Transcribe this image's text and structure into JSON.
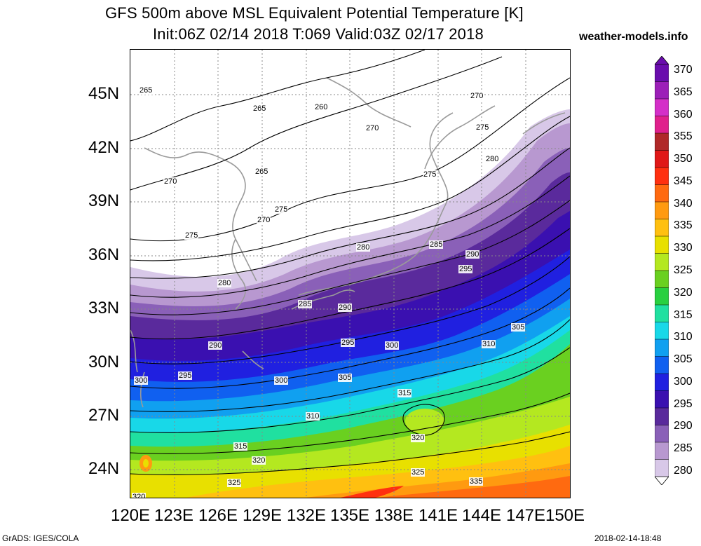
{
  "title": {
    "line1": "GFS 500m above MSL Equivalent Potential Temperature [K]",
    "line2": "Init:06Z 02/14 2018 T:069 Valid:03Z 02/17 2018"
  },
  "brand": "weather-models.info",
  "axes": {
    "lat_labels": [
      "45N",
      "42N",
      "39N",
      "36N",
      "33N",
      "30N",
      "27N",
      "24N"
    ],
    "lon_labels": [
      "120E",
      "123E",
      "126E",
      "129E",
      "132E",
      "135E",
      "138E",
      "141E",
      "144E",
      "147E",
      "150E"
    ]
  },
  "colorbar": {
    "labels": [
      "370",
      "365",
      "360",
      "355",
      "350",
      "345",
      "340",
      "335",
      "330",
      "325",
      "320",
      "315",
      "310",
      "305",
      "300",
      "295",
      "290",
      "285",
      "280"
    ],
    "colors": [
      "#6a0dad",
      "#9c1fb8",
      "#d42fc8",
      "#e0208c",
      "#b02828",
      "#e01818",
      "#ff3010",
      "#ff6a10",
      "#ff9a10",
      "#ffc010",
      "#e8e000",
      "#b4e820",
      "#6ad020",
      "#28d040",
      "#20e0a0",
      "#18d8e8",
      "#10a0f0",
      "#1060f0",
      "#2020e0",
      "#3a10b0",
      "#5a2a9c",
      "#8a60b8",
      "#b898d0",
      "#d8c8e8"
    ]
  },
  "contour_labels": [
    "265",
    "260",
    "265",
    "270",
    "265",
    "270",
    "270",
    "275",
    "270",
    "275",
    "280",
    "275",
    "275",
    "280",
    "280",
    "285",
    "290",
    "295",
    "285",
    "290",
    "290",
    "295",
    "300",
    "305",
    "310",
    "300",
    "295",
    "300",
    "305",
    "315",
    "310",
    "320",
    "315",
    "320",
    "325",
    "325",
    "335",
    "320"
  ],
  "footer": {
    "left": "GrADS: IGES/COLA",
    "right": "2018-02-14-18:48"
  }
}
